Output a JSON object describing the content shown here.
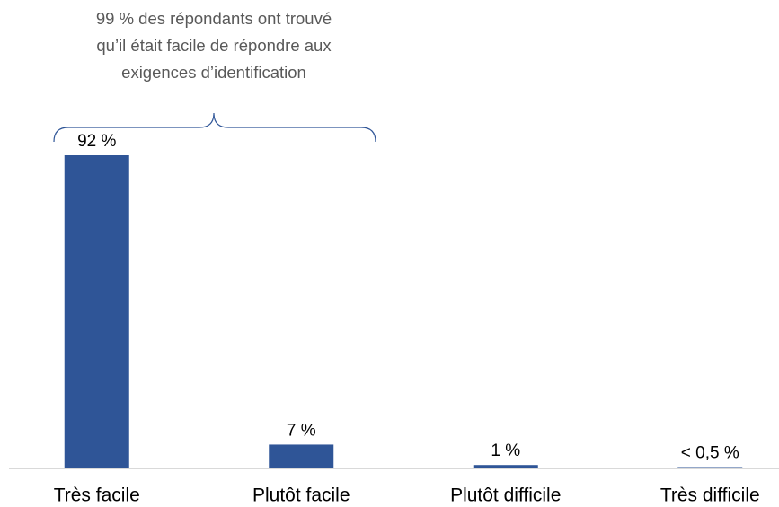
{
  "chart_data": {
    "type": "bar",
    "annotation": [
      "99 % des répondants ont trouvé",
      "qu’il était facile de répondre aux",
      "exigences d’identification"
    ],
    "categories": [
      "Très facile",
      "Plutôt facile",
      "Plutôt difficile",
      "Très difficile"
    ],
    "values": [
      92,
      7,
      1,
      0.4
    ],
    "value_labels": [
      "92 %",
      "7 %",
      "1 %",
      "< 0,5 %"
    ],
    "color": "#2f5597"
  }
}
